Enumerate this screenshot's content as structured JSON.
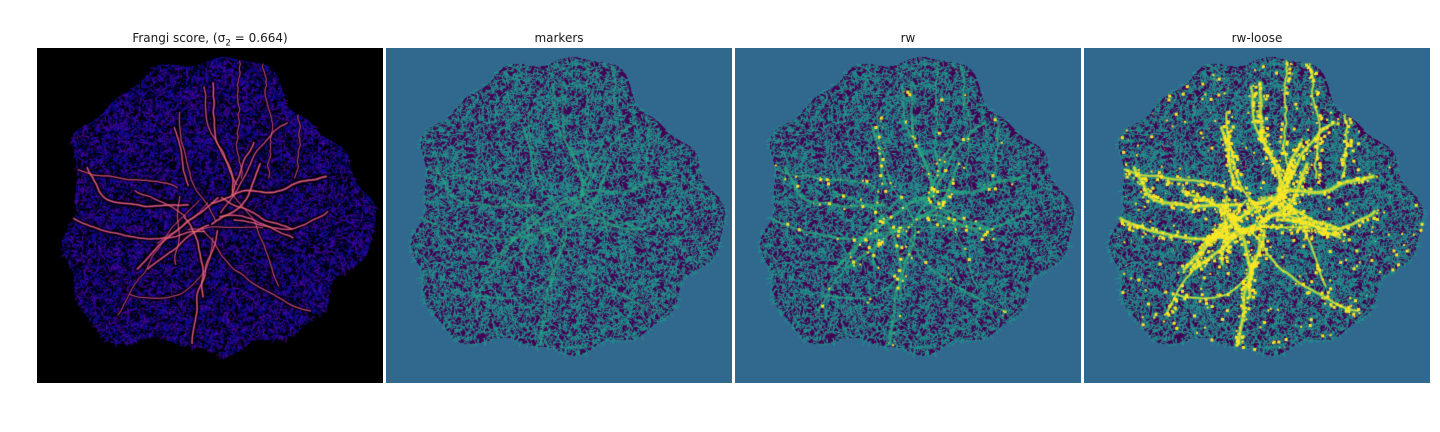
{
  "figure": {
    "panels": [
      {
        "title": "Frangi score, (σ",
        "title_sub": "2",
        "title_tail": " = 0.664)",
        "style": "frangi",
        "background": "#000000",
        "colors": [
          "#0d0887",
          "#2a07a0",
          "#5302a3",
          "#8b0aa5",
          "#b83289",
          "#db5c68",
          "#f48849",
          "#febc2a"
        ]
      },
      {
        "title": "markers",
        "style": "markers",
        "background": "#31688e",
        "colors": [
          "#440154",
          "#3b1f6a",
          "#21918c",
          "#28ae80"
        ]
      },
      {
        "title": "rw",
        "style": "rw",
        "background": "#31688e",
        "colors": [
          "#440154",
          "#3b1f6a",
          "#21918c",
          "#28ae80",
          "#fde725"
        ]
      },
      {
        "title": "rw-loose",
        "style": "rwloose",
        "background": "#31688e",
        "colors": [
          "#440154",
          "#3b1f6a",
          "#21918c",
          "#35b779",
          "#fde725"
        ]
      }
    ]
  }
}
